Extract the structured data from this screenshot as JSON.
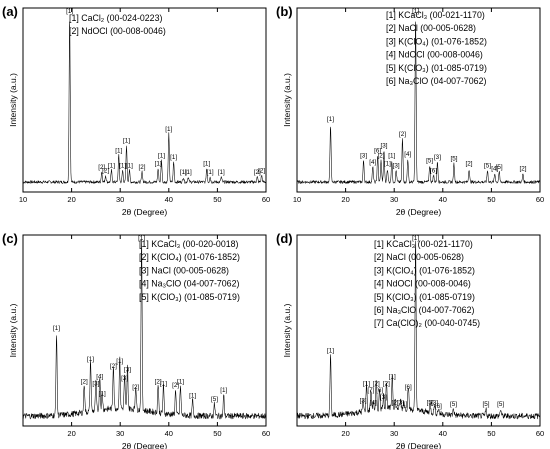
{
  "chart_data": [
    {
      "panel": "(a)",
      "type": "line",
      "xlabel": "2θ (Degree)",
      "ylabel": "Intensity (a.u.)",
      "xlim": [
        10,
        60
      ],
      "xticks": [
        "10",
        "20",
        "30",
        "40",
        "50",
        "60"
      ],
      "legend": [
        "[1] CaCl₂ (00-024-0223)",
        "[2] NdOCl (00-008-0046)"
      ],
      "peaks": [
        {
          "x": 19.6,
          "h": 1.0,
          "label": "[1]"
        },
        {
          "x": 26.2,
          "h": 0.06,
          "label": "[2]"
        },
        {
          "x": 27.0,
          "h": 0.04,
          "label": "[2]"
        },
        {
          "x": 28.2,
          "h": 0.07,
          "label": "[1]"
        },
        {
          "x": 29.7,
          "h": 0.16,
          "label": "[1]"
        },
        {
          "x": 30.5,
          "h": 0.07,
          "label": "[1]"
        },
        {
          "x": 31.3,
          "h": 0.22,
          "label": "[1]"
        },
        {
          "x": 31.9,
          "h": 0.07,
          "label": "[1]"
        },
        {
          "x": 34.5,
          "h": 0.06,
          "label": "[2]"
        },
        {
          "x": 37.8,
          "h": 0.08,
          "label": "[1]"
        },
        {
          "x": 38.5,
          "h": 0.13,
          "label": "[1]"
        },
        {
          "x": 40.0,
          "h": 0.29,
          "label": "[1]"
        },
        {
          "x": 41.0,
          "h": 0.12,
          "label": "[1]"
        },
        {
          "x": 43.0,
          "h": 0.03,
          "label": "[1]"
        },
        {
          "x": 44.0,
          "h": 0.03,
          "label": "[1]"
        },
        {
          "x": 47.8,
          "h": 0.08,
          "label": "[1]"
        },
        {
          "x": 48.5,
          "h": 0.03,
          "label": "[1]"
        },
        {
          "x": 50.8,
          "h": 0.03,
          "label": "[1]"
        },
        {
          "x": 58.2,
          "h": 0.03,
          "label": "[2]"
        },
        {
          "x": 59.1,
          "h": 0.04,
          "label": "[2]"
        }
      ]
    },
    {
      "panel": "(b)",
      "type": "line",
      "xlabel": "2θ (Degree)",
      "ylabel": "Intensity (a.u.)",
      "xlim": [
        10,
        60
      ],
      "xticks": [
        "10",
        "20",
        "30",
        "40",
        "50",
        "60"
      ],
      "legend": [
        "[1] KCaCl₃ (00-021-1170)",
        "[2] NaCl (00-005-0628)",
        "[3] K(ClO₄) (01-076-1852)",
        "[4] NdOCl (00-008-0046)",
        "[5] K(ClO₃) (01-085-0719)",
        "[6] Na₃ClO (04-007-7062)"
      ],
      "peaks": [
        {
          "x": 16.9,
          "h": 0.35,
          "label": "[1]"
        },
        {
          "x": 23.7,
          "h": 0.13,
          "label": "[3]"
        },
        {
          "x": 25.6,
          "h": 0.09,
          "label": "[4]"
        },
        {
          "x": 26.6,
          "h": 0.16,
          "label": "[6]"
        },
        {
          "x": 27.3,
          "h": 0.13,
          "label": "[2]"
        },
        {
          "x": 27.9,
          "h": 0.19,
          "label": "[3]"
        },
        {
          "x": 28.6,
          "h": 0.08,
          "label": "[1]"
        },
        {
          "x": 29.5,
          "h": 0.13,
          "label": "[1]"
        },
        {
          "x": 30.4,
          "h": 0.07,
          "label": "[3]"
        },
        {
          "x": 31.7,
          "h": 0.26,
          "label": "[2]"
        },
        {
          "x": 32.8,
          "h": 0.14,
          "label": "[4]"
        },
        {
          "x": 34.4,
          "h": 1.0,
          "label": "[1]"
        },
        {
          "x": 37.3,
          "h": 0.1,
          "label": "[5]"
        },
        {
          "x": 38.1,
          "h": 0.04,
          "label": "[6]"
        },
        {
          "x": 38.9,
          "h": 0.12,
          "label": "[3]"
        },
        {
          "x": 42.3,
          "h": 0.11,
          "label": "[5]"
        },
        {
          "x": 45.4,
          "h": 0.08,
          "label": "[2]"
        },
        {
          "x": 49.2,
          "h": 0.07,
          "label": "[5]"
        },
        {
          "x": 50.7,
          "h": 0.05,
          "label": "[4]"
        },
        {
          "x": 51.6,
          "h": 0.06,
          "label": "[5]"
        },
        {
          "x": 56.5,
          "h": 0.05,
          "label": "[2]"
        }
      ]
    },
    {
      "panel": "(c)",
      "type": "line",
      "xlabel": "2θ (Degree)",
      "ylabel": "Intensity (a.u.)",
      "xlim": [
        10,
        60
      ],
      "xticks": [
        "20",
        "30",
        "40",
        "50",
        "60"
      ],
      "legend": [
        "[1] KCaCl₃ (00-020-0018)",
        "[2] K(ClO₄) (01-076-1852)",
        "[3] NaCl (00-005-0628)",
        "[4] Na₃ClO (04-007-7062)",
        "[5] K(ClO₃) (01-085-0719)"
      ],
      "peaks": [
        {
          "x": 16.9,
          "h": 0.48,
          "label": "[1]"
        },
        {
          "x": 22.6,
          "h": 0.17,
          "label": "[2]"
        },
        {
          "x": 23.9,
          "h": 0.3,
          "label": "[1]"
        },
        {
          "x": 25.0,
          "h": 0.16,
          "label": "[3]"
        },
        {
          "x": 25.8,
          "h": 0.2,
          "label": "[4]"
        },
        {
          "x": 26.3,
          "h": 0.1,
          "label": "[1]"
        },
        {
          "x": 28.6,
          "h": 0.26,
          "label": "[2]"
        },
        {
          "x": 29.9,
          "h": 0.29,
          "label": "[1]"
        },
        {
          "x": 30.9,
          "h": 0.19,
          "label": "[3]"
        },
        {
          "x": 31.5,
          "h": 0.24,
          "label": "[3]"
        },
        {
          "x": 33.2,
          "h": 0.14,
          "label": "[2]"
        },
        {
          "x": 34.4,
          "h": 1.0,
          "label": "[1]"
        },
        {
          "x": 37.8,
          "h": 0.17,
          "label": "[2]"
        },
        {
          "x": 38.9,
          "h": 0.16,
          "label": "[1]"
        },
        {
          "x": 41.4,
          "h": 0.15,
          "label": "[2]"
        },
        {
          "x": 42.4,
          "h": 0.17,
          "label": "[1]"
        },
        {
          "x": 44.9,
          "h": 0.09,
          "label": "[1]"
        },
        {
          "x": 49.4,
          "h": 0.07,
          "label": "[5]"
        },
        {
          "x": 51.3,
          "h": 0.12,
          "label": "[1]"
        }
      ]
    },
    {
      "panel": "(d)",
      "type": "line",
      "xlabel": "2θ (Degree)",
      "ylabel": "Intensity (a.u.)",
      "xlim": [
        10,
        60
      ],
      "xticks": [
        "20",
        "30",
        "40",
        "50",
        "60"
      ],
      "legend": [
        "[1] KCaCl₃ (00-021-1170)",
        "[2] NaCl (00-005-0628)",
        "[3] K(ClO₄) (01-076-1852)",
        "[4] NdOCl (00-008-0046)",
        "[5] K(ClO₃) (01-085-0719)",
        "[6] Na₃ClO (04-007-7062)",
        "[7] Ca(ClO)₂ (00-040-0745)"
      ],
      "peaks": [
        {
          "x": 16.9,
          "h": 0.35,
          "label": "[1]"
        },
        {
          "x": 23.6,
          "h": 0.06,
          "label": "[3]"
        },
        {
          "x": 24.3,
          "h": 0.16,
          "label": "[1]"
        },
        {
          "x": 25.2,
          "h": 0.12,
          "label": "[7]"
        },
        {
          "x": 25.7,
          "h": 0.05,
          "label": "[4]"
        },
        {
          "x": 26.3,
          "h": 0.16,
          "label": "[2]"
        },
        {
          "x": 27.0,
          "h": 0.12,
          "label": "[6]"
        },
        {
          "x": 27.8,
          "h": 0.08,
          "label": "[3]"
        },
        {
          "x": 28.4,
          "h": 0.16,
          "label": "[2]"
        },
        {
          "x": 29.6,
          "h": 0.2,
          "label": "[1]"
        },
        {
          "x": 30.2,
          "h": 0.05,
          "label": "[2]"
        },
        {
          "x": 31.3,
          "h": 0.05,
          "label": "[3]"
        },
        {
          "x": 32.0,
          "h": 0.04,
          "label": "[1]"
        },
        {
          "x": 32.9,
          "h": 0.14,
          "label": "[6]"
        },
        {
          "x": 34.4,
          "h": 1.0,
          "label": "[1]"
        },
        {
          "x": 37.4,
          "h": 0.05,
          "label": "[5]"
        },
        {
          "x": 38.3,
          "h": 0.05,
          "label": "[3]"
        },
        {
          "x": 39.1,
          "h": 0.03,
          "label": "[6]"
        },
        {
          "x": 42.2,
          "h": 0.04,
          "label": "[5]"
        },
        {
          "x": 48.9,
          "h": 0.04,
          "label": "[5]"
        },
        {
          "x": 51.9,
          "h": 0.04,
          "label": "[5]"
        }
      ]
    }
  ]
}
